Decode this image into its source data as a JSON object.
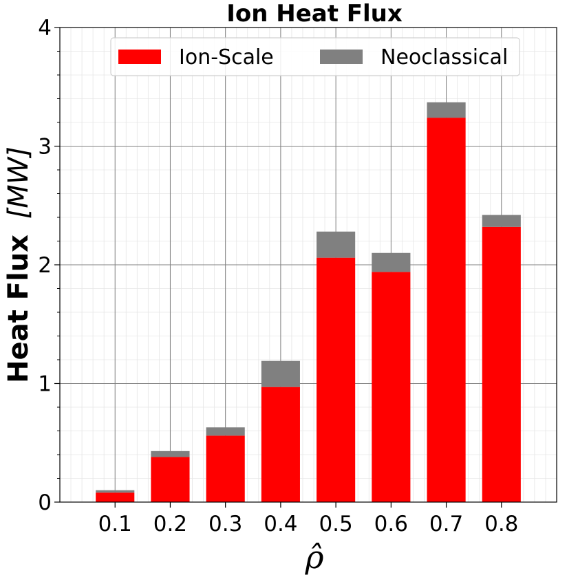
{
  "chart_data": {
    "type": "bar",
    "stacked": true,
    "title": "Ion Heat Flux",
    "xlabel": "ρ̂",
    "ylabel_bold": "Heat Flux",
    "ylabel_unit": "[MW]",
    "categories": [
      "0.1",
      "0.2",
      "0.3",
      "0.4",
      "0.5",
      "0.6",
      "0.7",
      "0.8"
    ],
    "series": [
      {
        "name": "Ion-Scale",
        "color": "#ff0000",
        "values": [
          0.08,
          0.38,
          0.56,
          0.97,
          2.06,
          1.94,
          3.24,
          2.32
        ]
      },
      {
        "name": "Neoclassical",
        "color": "#808080",
        "values": [
          0.02,
          0.05,
          0.07,
          0.22,
          0.22,
          0.16,
          0.13,
          0.1
        ]
      }
    ],
    "ylim": [
      0,
      4
    ],
    "yticks": [
      "0",
      "1",
      "2",
      "3",
      "4"
    ],
    "grid": true,
    "minor_grid": true,
    "legend_position": "top",
    "legend_columns": 2
  }
}
